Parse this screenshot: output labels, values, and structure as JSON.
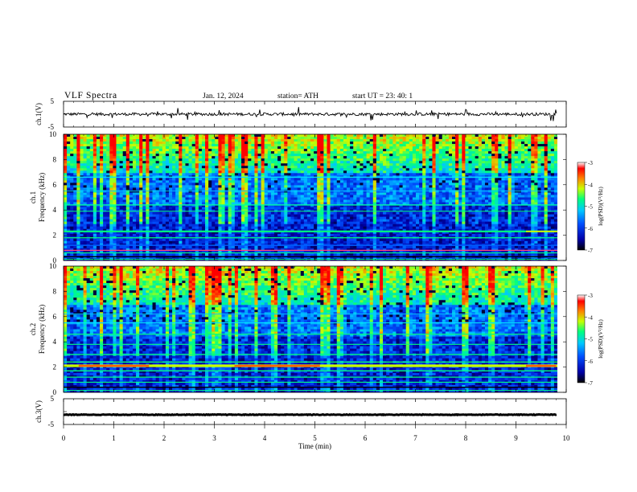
{
  "header": {
    "title": "VLF  Spectra",
    "date": "Jan. 12, 2024",
    "station": "station= ATH",
    "start": "start  UT  =    23: 40: 1"
  },
  "colors": {
    "colormap": [
      "#000000",
      "#0000a8",
      "#0050ff",
      "#00c8ff",
      "#00ff80",
      "#c8ff00",
      "#ff8000",
      "#ff0000",
      "#ffffff"
    ]
  },
  "chart_data": [
    {
      "type": "line",
      "name": "ch1-voltage",
      "ylabel": "ch.1(V)",
      "ylim": [
        -5,
        5
      ],
      "yticks": [
        "5",
        "-5"
      ],
      "xlim": [
        0,
        10
      ],
      "baseline": 0,
      "grid": false
    },
    {
      "type": "heatmap",
      "name": "ch1-spectrogram",
      "ylabel": "ch.1\nFrequency (kHz)",
      "ylim": [
        0,
        10
      ],
      "yticks": [
        "0",
        "2",
        "4",
        "6",
        "8",
        "10"
      ],
      "xlim": [
        0,
        10
      ],
      "colorbar": {
        "label": "log(PSD)(V²/Hz)",
        "range": [
          -7,
          -3
        ],
        "ticks": [
          "-3",
          "-4",
          "-5",
          "-6",
          "-7"
        ]
      }
    },
    {
      "type": "heatmap",
      "name": "ch2-spectrogram",
      "ylabel": "ch.2\nFrequency (kHz)",
      "ylim": [
        0,
        10
      ],
      "yticks": [
        "0",
        "2",
        "4",
        "6",
        "8",
        "10"
      ],
      "xlim": [
        0,
        10
      ],
      "colorbar": {
        "label": "log(PSD)(V²/Hz)",
        "range": [
          -7,
          -3
        ],
        "ticks": [
          "-3",
          "-4",
          "-5",
          "-6",
          "-7"
        ]
      }
    },
    {
      "type": "line",
      "name": "ch3-voltage",
      "ylabel": "ch.3(V)",
      "ylim": [
        -5,
        5
      ],
      "yticks": [
        "5",
        "-5"
      ],
      "xlim": [
        0,
        10
      ],
      "baseline": -1.2,
      "grid": false,
      "xlabel": "Time  (min)",
      "xticks": [
        "0",
        "1",
        "2",
        "3",
        "4",
        "5",
        "6",
        "7",
        "8",
        "9",
        "10"
      ]
    }
  ]
}
